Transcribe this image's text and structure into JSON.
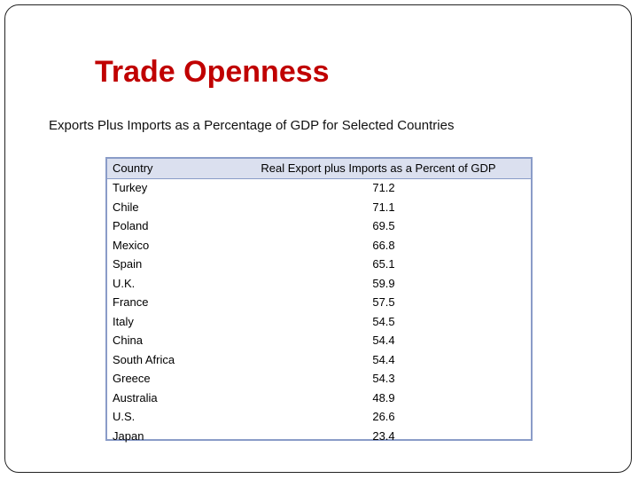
{
  "title": "Trade Openness",
  "subtitle": "Exports Plus Imports as a Percentage of GDP for Selected Countries",
  "table": {
    "header": [
      "Country",
      "Real Export plus Imports as a Percent of GDP"
    ],
    "rows": [
      [
        "Turkey",
        71.2
      ],
      [
        "Chile",
        71.1
      ],
      [
        "Poland",
        69.5
      ],
      [
        "Mexico",
        66.8
      ],
      [
        "Spain",
        65.1
      ],
      [
        "U.K.",
        59.9
      ],
      [
        "France",
        57.5
      ],
      [
        "Italy",
        54.5
      ],
      [
        "China",
        54.4
      ],
      [
        "South Africa",
        54.4
      ],
      [
        "Greece",
        54.3
      ],
      [
        "Australia",
        48.9
      ],
      [
        "U.S.",
        26.6
      ],
      [
        "Japan",
        23.4
      ]
    ]
  }
}
